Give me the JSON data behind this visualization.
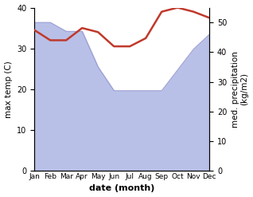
{
  "months": [
    "Jan",
    "Feb",
    "Mar",
    "Apr",
    "May",
    "Jun",
    "Jul",
    "Aug",
    "Sep",
    "Oct",
    "Nov",
    "Dec"
  ],
  "temperature": [
    34.5,
    32.0,
    32.0,
    35.0,
    34.0,
    30.5,
    30.5,
    32.5,
    39.0,
    40.0,
    39.0,
    37.5
  ],
  "precipitation": [
    50.0,
    50.0,
    47.0,
    47.0,
    35.0,
    27.0,
    27.0,
    27.0,
    27.0,
    34.0,
    41.0,
    46.0
  ],
  "temp_color": "#c0392b",
  "precip_fill_color": "#b8c0e8",
  "precip_line_color": "#9090c8",
  "left_ylim": [
    0,
    40
  ],
  "right_ylim": [
    0,
    55
  ],
  "left_yticks": [
    0,
    10,
    20,
    30,
    40
  ],
  "right_yticks": [
    0,
    10,
    20,
    30,
    40,
    50
  ],
  "xlabel": "date (month)",
  "ylabel_left": "max temp (C)",
  "ylabel_right": "med. precipitation\n(kg/m2)",
  "figsize": [
    3.18,
    2.47
  ],
  "dpi": 100
}
